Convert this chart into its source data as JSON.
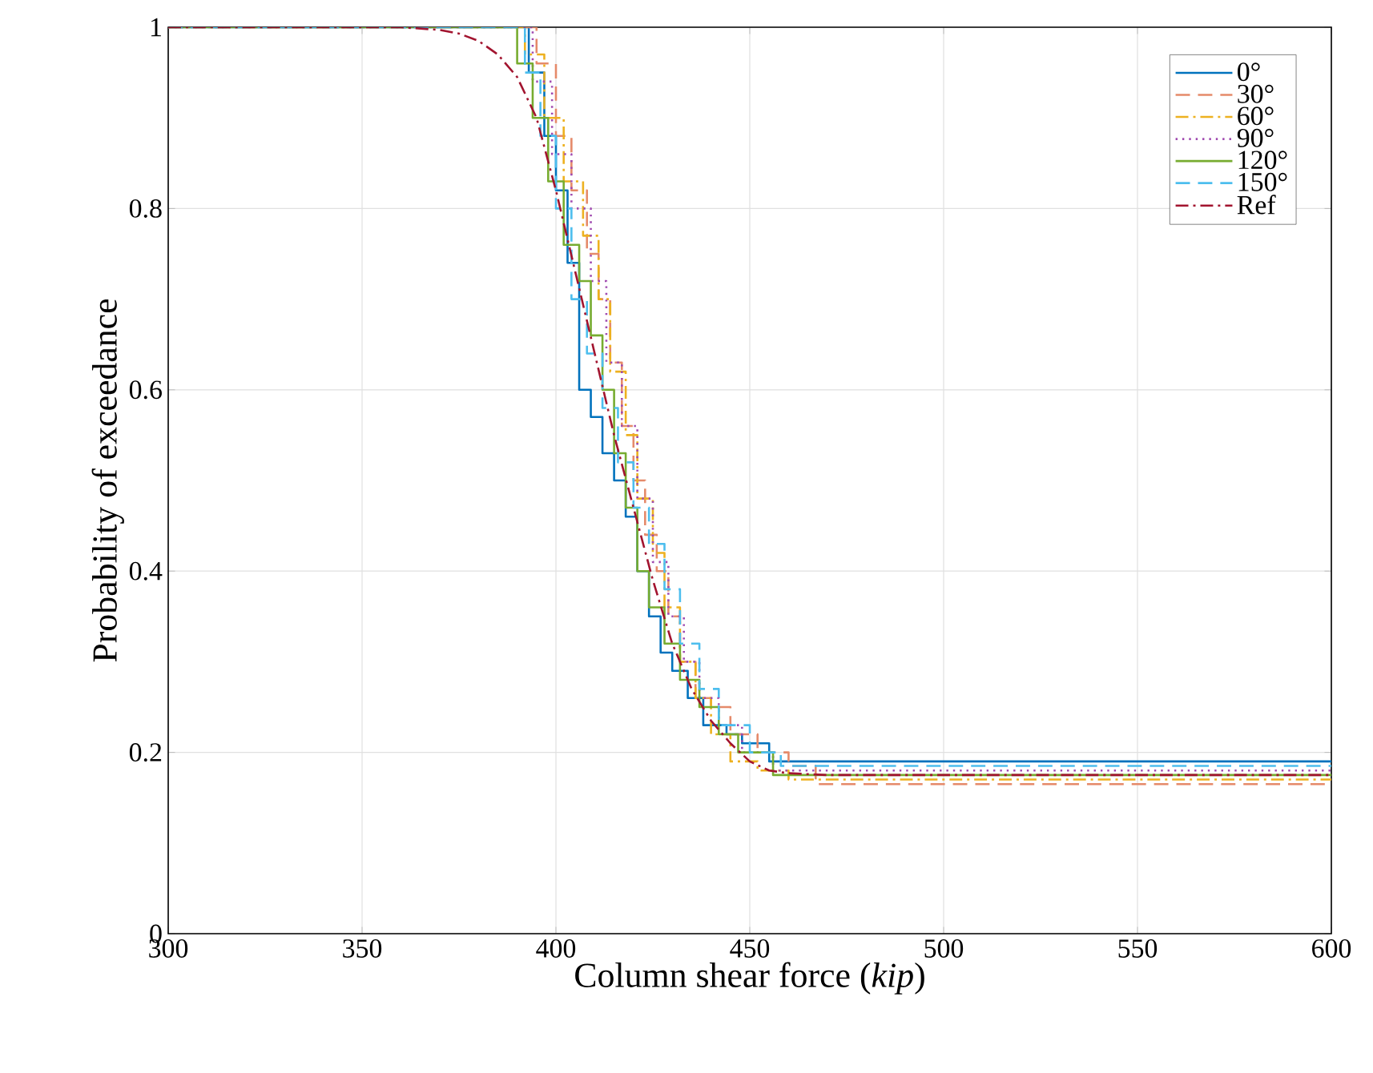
{
  "chart_data": {
    "type": "step",
    "xlabel": "Column shear force (*kip*)",
    "ylabel": "Probability of exceedance",
    "xlim": [
      300,
      600
    ],
    "ylim": [
      0,
      1
    ],
    "xticks": [
      300,
      350,
      400,
      450,
      500,
      550,
      600
    ],
    "yticks": [
      0,
      0.2,
      0.4,
      0.6,
      0.8,
      1
    ],
    "grid": true,
    "legend": "top right",
    "series": [
      {
        "name": "0°",
        "color": "#0072bd",
        "line_style": "solid",
        "x": [
          300,
          393,
          397,
          400,
          403,
          406,
          409,
          412,
          415,
          418,
          421,
          424,
          427,
          430,
          434,
          438,
          444,
          448,
          455,
          600
        ],
        "values": [
          1,
          0.95,
          0.88,
          0.82,
          0.74,
          0.6,
          0.57,
          0.53,
          0.5,
          0.46,
          0.4,
          0.35,
          0.31,
          0.29,
          0.26,
          0.23,
          0.22,
          0.21,
          0.19,
          0.19
        ]
      },
      {
        "name": "30°",
        "color": "#e58a6a",
        "line_style": "dashed",
        "x": [
          300,
          395,
          400,
          404,
          408,
          411,
          414,
          417,
          420,
          423,
          426,
          429,
          432,
          436,
          440,
          445,
          452,
          460,
          467,
          600
        ],
        "values": [
          1,
          0.96,
          0.88,
          0.82,
          0.75,
          0.7,
          0.63,
          0.56,
          0.5,
          0.44,
          0.4,
          0.35,
          0.3,
          0.26,
          0.25,
          0.22,
          0.2,
          0.185,
          0.165,
          0.165
        ]
      },
      {
        "name": "60°",
        "color": "#edb120",
        "line_style": "dashdot",
        "x": [
          300,
          392,
          397,
          402,
          407,
          411,
          414,
          418,
          421,
          425,
          428,
          432,
          436,
          440,
          445,
          452,
          460,
          470,
          600
        ],
        "values": [
          1,
          0.97,
          0.9,
          0.83,
          0.77,
          0.7,
          0.62,
          0.55,
          0.48,
          0.42,
          0.36,
          0.3,
          0.26,
          0.22,
          0.19,
          0.18,
          0.17,
          0.17,
          0.17
        ]
      },
      {
        "name": "90°",
        "color": "#a04ab0",
        "line_style": "dotted",
        "x": [
          300,
          394,
          399,
          404,
          409,
          413,
          417,
          421,
          425,
          429,
          433,
          437,
          442,
          448,
          456,
          600
        ],
        "values": [
          1,
          0.94,
          0.86,
          0.8,
          0.72,
          0.63,
          0.56,
          0.48,
          0.41,
          0.35,
          0.3,
          0.26,
          0.23,
          0.2,
          0.18,
          0.18
        ]
      },
      {
        "name": "120°",
        "color": "#77ac30",
        "line_style": "solid",
        "x": [
          300,
          390,
          394,
          398,
          402,
          406,
          409,
          412,
          415,
          418,
          421,
          424,
          428,
          432,
          437,
          442,
          447,
          456,
          600
        ],
        "values": [
          1,
          0.96,
          0.9,
          0.83,
          0.76,
          0.72,
          0.66,
          0.6,
          0.53,
          0.47,
          0.4,
          0.36,
          0.32,
          0.28,
          0.25,
          0.22,
          0.2,
          0.175,
          0.175
        ]
      },
      {
        "name": "150°",
        "color": "#4dbeee",
        "line_style": "dashed",
        "x": [
          300,
          392,
          396,
          400,
          404,
          408,
          412,
          416,
          420,
          424,
          428,
          432,
          437,
          442,
          450,
          458,
          600
        ],
        "values": [
          1,
          0.95,
          0.88,
          0.8,
          0.7,
          0.64,
          0.58,
          0.52,
          0.47,
          0.43,
          0.38,
          0.32,
          0.27,
          0.23,
          0.2,
          0.185,
          0.185
        ]
      },
      {
        "name": "Ref",
        "color": "#a2142f",
        "type": "line",
        "line_style": "dashdot",
        "x": [
          300,
          350,
          360,
          370,
          375,
          380,
          385,
          390,
          395,
          400,
          405,
          410,
          415,
          420,
          425,
          430,
          435,
          440,
          445,
          450,
          455,
          460,
          470,
          600
        ],
        "values": [
          1,
          1,
          1,
          0.997,
          0.993,
          0.985,
          0.97,
          0.945,
          0.9,
          0.82,
          0.73,
          0.64,
          0.55,
          0.47,
          0.39,
          0.32,
          0.27,
          0.235,
          0.21,
          0.19,
          0.18,
          0.177,
          0.175,
          0.175
        ]
      }
    ]
  }
}
